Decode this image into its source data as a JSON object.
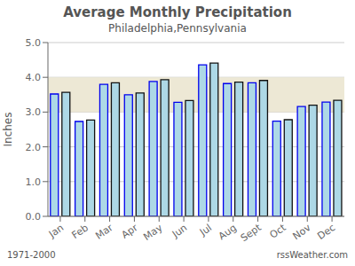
{
  "chart_data": {
    "type": "bar",
    "title": "Average Monthly Precipitation",
    "subtitle": "Philadelphia,Pennsylvania",
    "y_label": "Inches",
    "categories": [
      "Jan",
      "Feb",
      "Mar",
      "Apr",
      "May",
      "Jun",
      "Jul",
      "Aug",
      "Sept",
      "Oct",
      "Nov",
      "Dec"
    ],
    "color": "#add8e6",
    "series": [
      {
        "color": "#0000ee",
        "values": [
          3.52,
          2.73,
          3.8,
          3.5,
          3.88,
          3.28,
          4.36,
          3.82,
          3.84,
          2.74,
          3.16,
          3.29
        ]
      },
      {
        "color": "#111111",
        "values": [
          3.57,
          2.77,
          3.84,
          3.55,
          3.93,
          3.33,
          4.41,
          3.86,
          3.91,
          2.78,
          3.2,
          3.34
        ]
      }
    ],
    "ylim": [
      0.0,
      5.0
    ],
    "yticks": [
      {
        "value": 0,
        "label": "0.0"
      },
      {
        "value": 1,
        "label": "1.0"
      },
      {
        "value": 2,
        "label": "2.0"
      },
      {
        "value": 3,
        "label": "3.0"
      },
      {
        "value": 4,
        "label": "4.0"
      },
      {
        "value": 5,
        "label": "5.0"
      }
    ],
    "band": {
      "range": [
        3.0,
        4.0
      ],
      "color": "#ede8d5"
    },
    "grid": true,
    "annotations": [
      "1971-2000",
      "rssWeather.com"
    ]
  }
}
